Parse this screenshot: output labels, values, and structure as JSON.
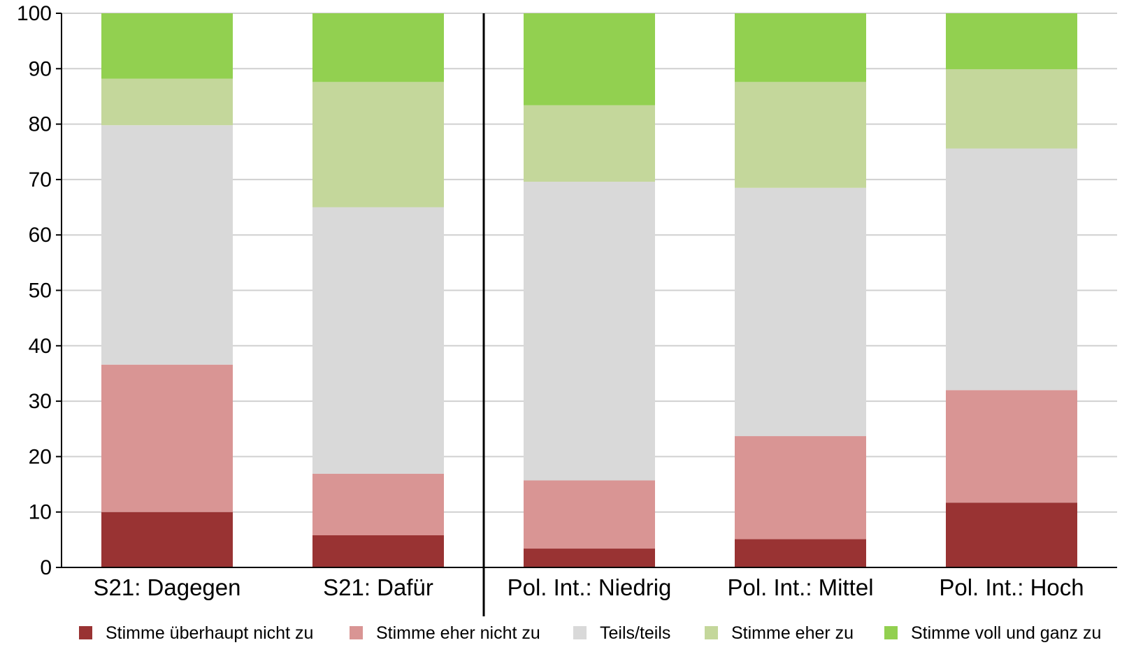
{
  "chart_data": {
    "type": "bar",
    "stacked": true,
    "title": "",
    "xlabel": "",
    "ylabel": "",
    "ylim": [
      0,
      100
    ],
    "yticks": [
      0,
      10,
      20,
      30,
      40,
      50,
      60,
      70,
      80,
      90,
      100
    ],
    "grid": true,
    "legend_position": "bottom",
    "categories": [
      "S21: Dagegen",
      "S21: Dafür",
      "Pol. Int.: Niedrig",
      "Pol. Int.: Mittel",
      "Pol. Int.: Hoch"
    ],
    "group_separator_after": 1,
    "series": [
      {
        "name": "Stimme überhaupt nicht zu",
        "color": "#993333",
        "values": [
          10.0,
          5.8,
          3.4,
          5.1,
          11.7
        ]
      },
      {
        "name": "Stimme eher nicht zu",
        "color": "#d99594",
        "values": [
          26.6,
          11.1,
          12.3,
          18.6,
          20.3
        ]
      },
      {
        "name": "Teils/teils",
        "color": "#d9d9d9",
        "values": [
          43.2,
          48.1,
          53.9,
          44.8,
          43.6
        ]
      },
      {
        "name": "Stimme eher zu",
        "color": "#c4d79b",
        "values": [
          8.4,
          22.6,
          13.8,
          19.1,
          14.3
        ]
      },
      {
        "name": "Stimme voll und ganz zu",
        "color": "#92d050",
        "values": [
          11.8,
          12.4,
          16.6,
          12.4,
          10.1
        ]
      }
    ]
  }
}
